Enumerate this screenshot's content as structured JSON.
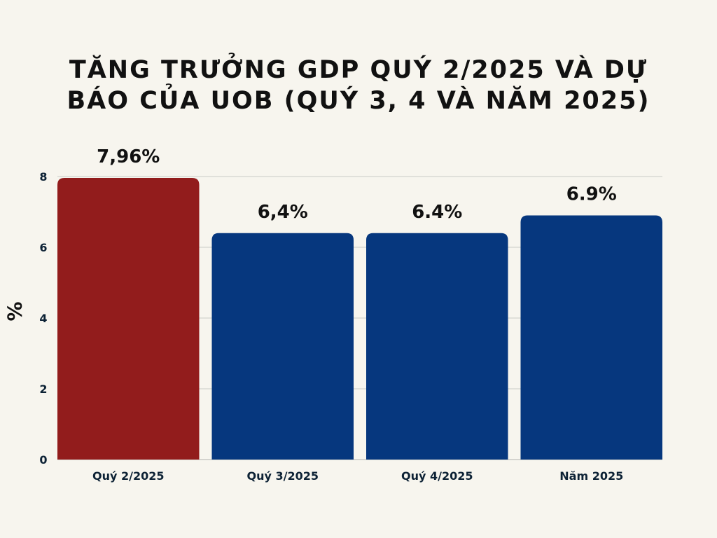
{
  "chart_data": {
    "type": "bar",
    "title_lines": [
      "TĂNG TRƯỞNG GDP QUÝ 2/2025 VÀ DỰ",
      "BÁO CỦA UOB (QUÝ 3, 4 VÀ NĂM 2025)"
    ],
    "categories": [
      "Quý 2/2025",
      "Quý 3/2025",
      "Quý 4/2025",
      "Năm 2025"
    ],
    "values": [
      7.96,
      6.4,
      6.4,
      6.9
    ],
    "data_labels": [
      "7,96%",
      "6,4%",
      "6.4%",
      "6.9%"
    ],
    "colors": [
      "#921c1c",
      "#06377e",
      "#06377e",
      "#06377e"
    ],
    "xlabel": "",
    "ylabel": "%",
    "ylim": [
      0,
      8
    ],
    "yticks": [
      0,
      2,
      4,
      6,
      8
    ],
    "grid": true
  }
}
